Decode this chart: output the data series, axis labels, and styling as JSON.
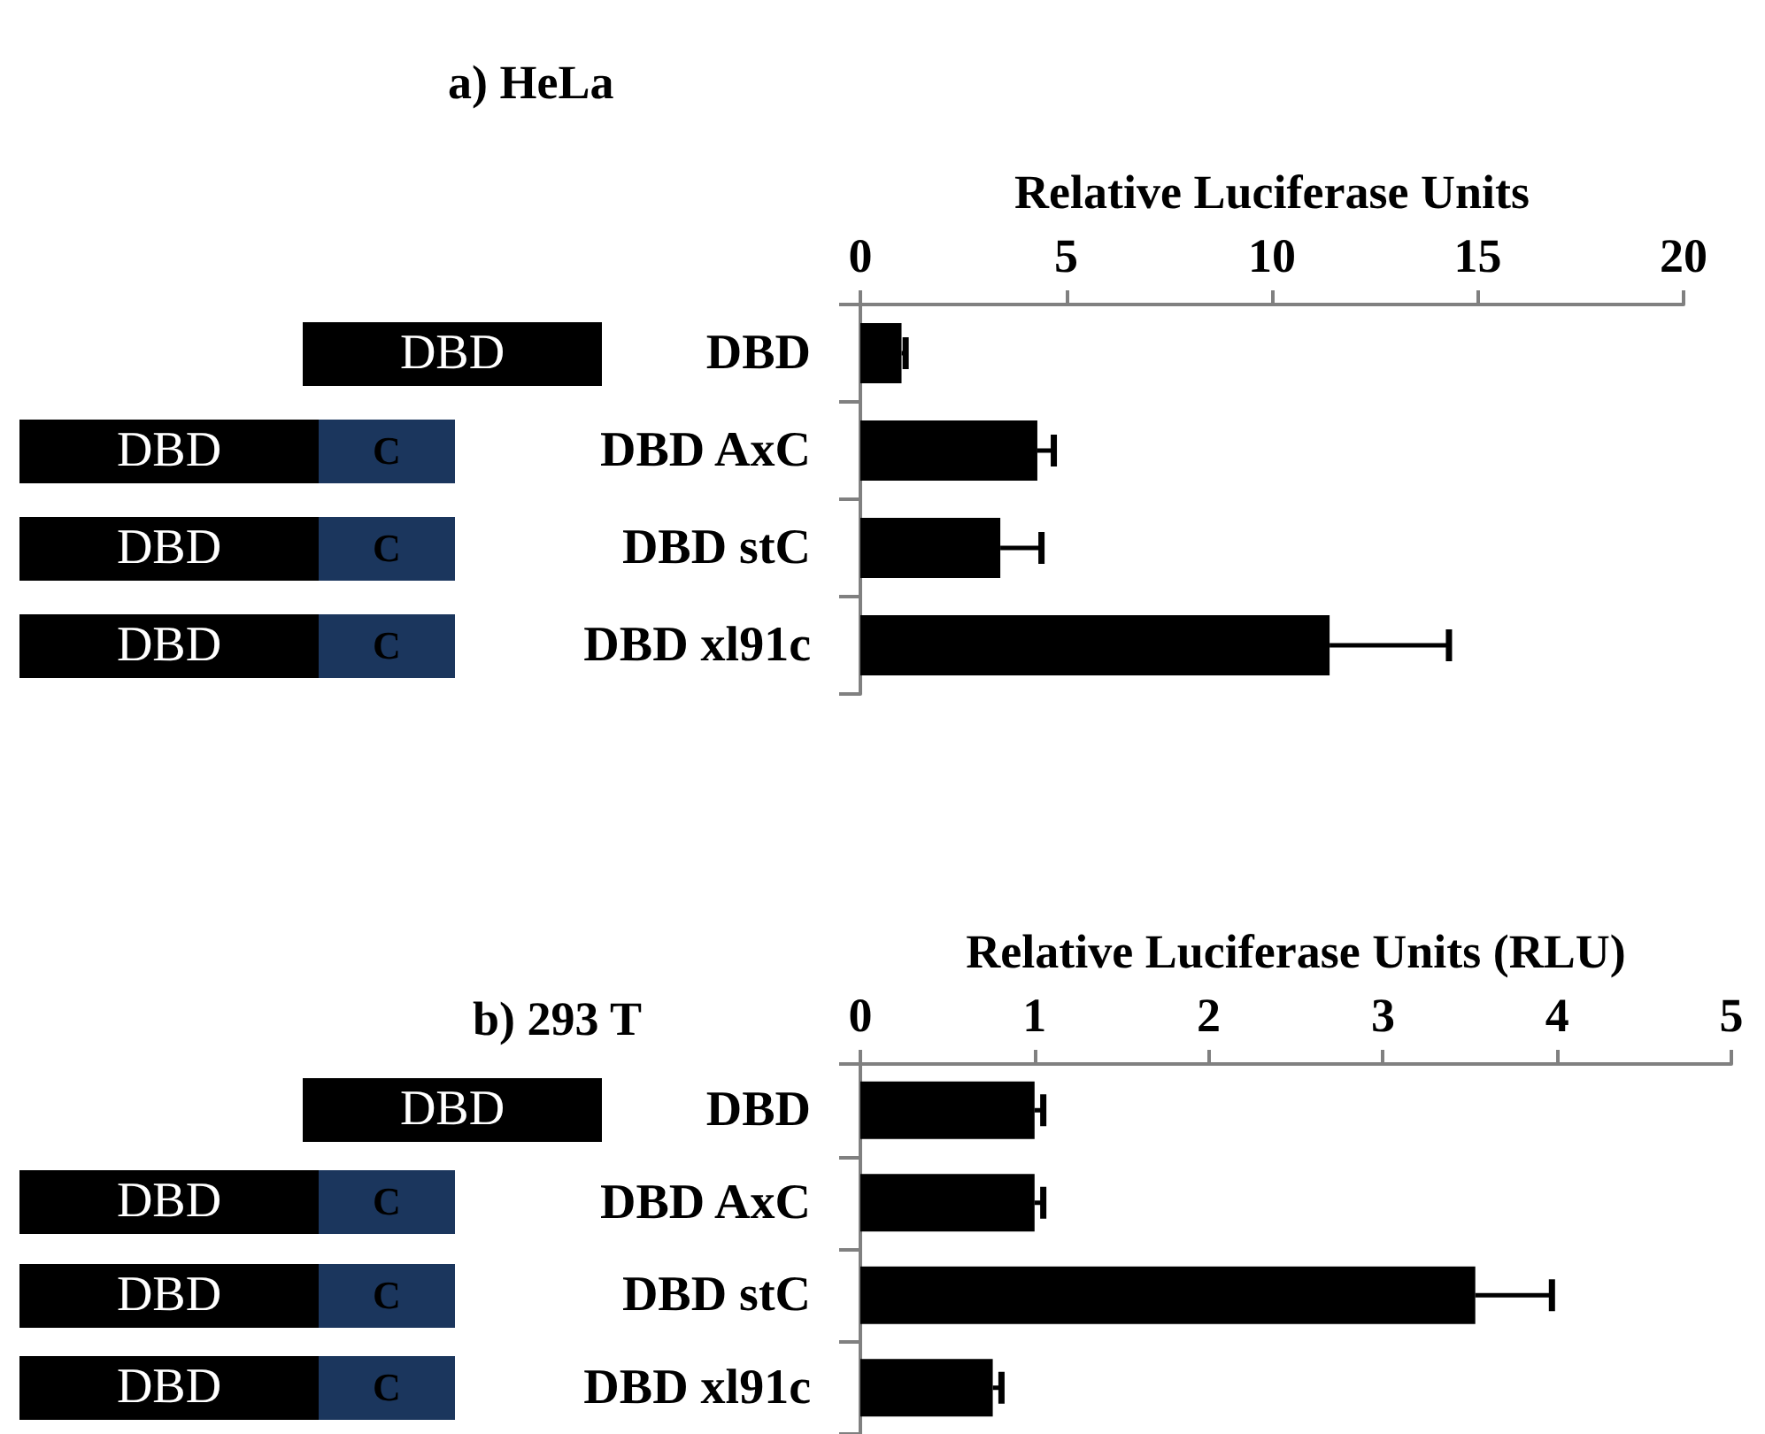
{
  "chart_data": [
    {
      "type": "bar",
      "orientation": "horizontal",
      "title": "a) HeLa",
      "xlabel": "Relative Luciferase Units",
      "categories": [
        "DBD",
        "DBD AxC",
        "DBD stC",
        "DBD xl91c"
      ],
      "values": [
        1.0,
        4.3,
        3.4,
        11.4
      ],
      "errors": [
        [
          1.0,
          1.1
        ],
        [
          4.3,
          4.7
        ],
        [
          3.4,
          4.4
        ],
        [
          11.4,
          14.3
        ]
      ],
      "color": "#000000",
      "xlim": [
        0,
        20
      ],
      "xticks": [
        0,
        5,
        10,
        15,
        20
      ],
      "grid": false,
      "annotations": [
        "DBD",
        "DBD",
        "C",
        "DBD",
        "C",
        "DBD",
        "C"
      ]
    },
    {
      "type": "bar",
      "orientation": "horizontal",
      "title": "b) 293 T",
      "xlabel": "Relative Luciferase Units (RLU)",
      "categories": [
        "DBD",
        "DBD AxC",
        "DBD stC",
        "DBD xl91c"
      ],
      "values": [
        1.0,
        1.0,
        3.53,
        0.76
      ],
      "errors": [
        [
          1.0,
          1.05
        ],
        [
          1.0,
          1.05
        ],
        [
          3.53,
          3.97
        ],
        [
          0.76,
          0.81
        ]
      ],
      "color": "#000000",
      "xlim": [
        0,
        5
      ],
      "xticks": [
        0,
        1,
        2,
        3,
        4,
        5
      ],
      "grid": false,
      "annotations": [
        "DBD",
        "DBD",
        "C",
        "DBD",
        "C",
        "DBD",
        "C"
      ]
    }
  ]
}
